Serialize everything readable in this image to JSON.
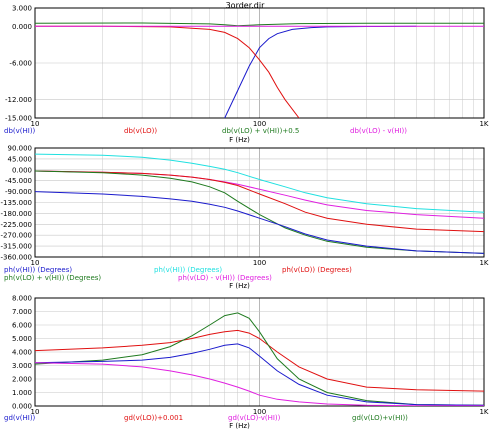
{
  "window": {
    "title": "3order.dir"
  },
  "colors": {
    "blue": "#1a1acc",
    "red": "#e01010",
    "green": "#1f7a1f",
    "magenta": "#e020e0",
    "cyan": "#20e0e0",
    "grid": "#c8c8c8",
    "frame": "#000000"
  },
  "chart_data": [
    {
      "type": "line",
      "xscale": "log",
      "xlim": [
        10,
        1000
      ],
      "ylim": [
        -15,
        3
      ],
      "x_ticks": [
        "10",
        "100",
        "1K"
      ],
      "y_ticks": [
        "3.000",
        "0.000",
        "-6.000",
        "-12.000",
        "-15.000"
      ],
      "xlabel": "F (Hz)",
      "legend": [
        {
          "label": "db(v(HI))",
          "color": "blue"
        },
        {
          "label": "db(v(LO))",
          "color": "red"
        },
        {
          "label": "db(v(LO) + v(HI))+0.5",
          "color": "green"
        },
        {
          "label": "db(v(LO) - v(HI))",
          "color": "magenta"
        }
      ],
      "series": [
        {
          "color": "blue",
          "x": [
            70,
            80,
            90,
            100,
            110,
            120,
            140,
            170,
            200,
            300,
            500
          ],
          "y": [
            -15,
            -10.5,
            -6.5,
            -3.5,
            -2.0,
            -1.2,
            -0.5,
            -0.2,
            -0.1,
            -0.02,
            0
          ]
        },
        {
          "color": "red",
          "x": [
            10,
            20,
            40,
            60,
            70,
            80,
            90,
            100,
            110,
            120,
            130,
            150
          ],
          "y": [
            0,
            0,
            -0.1,
            -0.5,
            -1.0,
            -2.0,
            -3.5,
            -5.5,
            -7.5,
            -10.0,
            -12.0,
            -15
          ]
        },
        {
          "color": "green",
          "x": [
            10,
            30,
            60,
            70,
            80,
            100,
            150,
            300,
            1000
          ],
          "y": [
            0.5,
            0.55,
            0.4,
            0.25,
            0.1,
            0.25,
            0.45,
            0.5,
            0.5
          ]
        },
        {
          "color": "magenta",
          "x": [
            10,
            1000
          ],
          "y": [
            0,
            0
          ]
        }
      ]
    },
    {
      "type": "line",
      "xscale": "log",
      "xlim": [
        10,
        1000
      ],
      "ylim": [
        -360,
        90
      ],
      "x_ticks": [
        "10",
        "100",
        "1K"
      ],
      "y_ticks": [
        "90.000",
        "45.000",
        "0.000",
        "-45.000",
        "-90.000",
        "-135.000",
        "-180.000",
        "-225.000",
        "-270.000",
        "-315.000",
        "-360.000"
      ],
      "xlabel": "F (Hz)",
      "legend": [
        {
          "label": "ph(v(HI)) (Degrees)",
          "color": "blue"
        },
        {
          "label": "ph(v(HI)) (Degrees)",
          "color": "cyan"
        },
        {
          "label": "ph(v(LO)) (Degrees)",
          "color": "red"
        },
        {
          "label": "ph(v(LO) + v(HI)) (Degrees)",
          "color": "green"
        },
        {
          "label": "ph(v(LO) - v(HI)) (Degrees)",
          "color": "magenta"
        }
      ],
      "series": [
        {
          "color": "cyan",
          "x": [
            10,
            20,
            30,
            40,
            50,
            60,
            70,
            80,
            100,
            130,
            160,
            200,
            300,
            500,
            1000
          ],
          "y": [
            65,
            60,
            52,
            40,
            27,
            14,
            2,
            -12,
            -40,
            -70,
            -95,
            -115,
            -140,
            -160,
            -175
          ]
        },
        {
          "color": "magenta",
          "x": [
            10,
            20,
            30,
            40,
            50,
            60,
            70,
            80,
            100,
            130,
            160,
            200,
            300,
            500,
            1000
          ],
          "y": [
            -5,
            -10,
            -15,
            -22,
            -30,
            -40,
            -50,
            -60,
            -80,
            -105,
            -125,
            -145,
            -168,
            -185,
            -200
          ]
        },
        {
          "color": "red",
          "x": [
            10,
            20,
            30,
            40,
            50,
            60,
            70,
            80,
            100,
            130,
            160,
            200,
            300,
            500,
            1000
          ],
          "y": [
            -5,
            -10,
            -15,
            -22,
            -30,
            -40,
            -52,
            -65,
            -100,
            -140,
            -175,
            -200,
            -225,
            -245,
            -255
          ]
        },
        {
          "color": "green",
          "x": [
            10,
            20,
            30,
            40,
            50,
            60,
            70,
            80,
            100,
            130,
            160,
            200,
            300,
            500,
            1000
          ],
          "y": [
            -5,
            -12,
            -22,
            -35,
            -50,
            -70,
            -95,
            -130,
            -185,
            -240,
            -270,
            -295,
            -320,
            -335,
            -345
          ]
        },
        {
          "color": "blue",
          "x": [
            10,
            20,
            30,
            40,
            50,
            60,
            70,
            80,
            100,
            130,
            160,
            200,
            300,
            500,
            1000
          ],
          "y": [
            -90,
            -100,
            -110,
            -120,
            -130,
            -142,
            -155,
            -170,
            -200,
            -235,
            -265,
            -290,
            -315,
            -335,
            -345
          ]
        }
      ]
    },
    {
      "type": "line",
      "xscale": "log",
      "xlim": [
        10,
        1000
      ],
      "ylim": [
        0,
        8
      ],
      "x_ticks": [
        "10",
        "100",
        "1K"
      ],
      "y_ticks": [
        "8.000",
        "7.000",
        "6.000",
        "5.000",
        "4.000",
        "3.000",
        "2.000",
        "1.000",
        "0.000"
      ],
      "xlabel": "F (Hz)",
      "legend": [
        {
          "label": "gd(v(HI))",
          "color": "blue"
        },
        {
          "label": "gd(v(LO))+0.001",
          "color": "red"
        },
        {
          "label": "gd(v(LO)-v(HI))",
          "color": "magenta"
        },
        {
          "label": "gd(v(LO)+v(HI))",
          "color": "green"
        }
      ],
      "series": [
        {
          "color": "red",
          "x": [
            10,
            20,
            30,
            40,
            50,
            60,
            70,
            80,
            90,
            100,
            120,
            150,
            200,
            300,
            500,
            1000
          ],
          "y": [
            4.1,
            4.3,
            4.5,
            4.7,
            5.0,
            5.3,
            5.5,
            5.6,
            5.4,
            5.0,
            4.0,
            2.9,
            2.0,
            1.4,
            1.2,
            1.1
          ]
        },
        {
          "color": "green",
          "x": [
            10,
            20,
            30,
            40,
            50,
            60,
            70,
            80,
            90,
            100,
            120,
            150,
            200,
            300,
            500,
            1000
          ],
          "y": [
            3.1,
            3.4,
            3.8,
            4.4,
            5.2,
            6.0,
            6.7,
            6.9,
            6.5,
            5.5,
            3.5,
            2.0,
            1.0,
            0.4,
            0.1,
            0.05
          ]
        },
        {
          "color": "blue",
          "x": [
            10,
            20,
            30,
            40,
            50,
            60,
            70,
            80,
            90,
            100,
            120,
            150,
            200,
            300,
            500,
            1000
          ],
          "y": [
            3.2,
            3.3,
            3.4,
            3.6,
            3.9,
            4.2,
            4.5,
            4.6,
            4.3,
            3.7,
            2.6,
            1.6,
            0.8,
            0.3,
            0.1,
            0.05
          ]
        },
        {
          "color": "magenta",
          "x": [
            10,
            20,
            30,
            40,
            50,
            60,
            70,
            80,
            90,
            100,
            120,
            150,
            200,
            300,
            500,
            1000
          ],
          "y": [
            3.2,
            3.1,
            2.9,
            2.6,
            2.3,
            2.0,
            1.7,
            1.4,
            1.1,
            0.8,
            0.5,
            0.3,
            0.15,
            0.05,
            0.02,
            0.01
          ]
        }
      ]
    }
  ]
}
